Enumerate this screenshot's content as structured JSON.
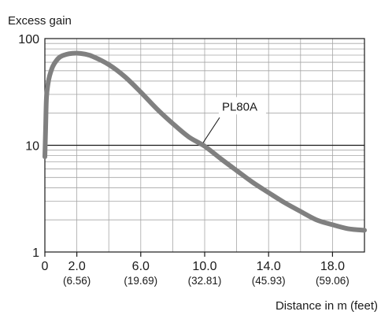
{
  "chart_data": {
    "type": "line",
    "ylabel": "Excess gain",
    "xlabel": "Distance in m (feet)",
    "yscale": "log",
    "ylim": [
      1,
      100
    ],
    "xlim": [
      0,
      20
    ],
    "grid": true,
    "y_ticks": [
      {
        "value": 1,
        "label": "1"
      },
      {
        "value": 10,
        "label": "10"
      },
      {
        "value": 100,
        "label": "100"
      }
    ],
    "x_ticks": [
      {
        "value": 0,
        "label": "0",
        "sub": ""
      },
      {
        "value": 2,
        "label": "2.0",
        "sub": "(6.56)"
      },
      {
        "value": 6,
        "label": "6.0",
        "sub": "(19.69)"
      },
      {
        "value": 10,
        "label": "10.0",
        "sub": "(32.81)"
      },
      {
        "value": 14,
        "label": "14.0",
        "sub": "(45.93)"
      },
      {
        "value": 18,
        "label": "18.0",
        "sub": "(59.06)"
      }
    ],
    "series": [
      {
        "name": "PL80A",
        "color": "#808080",
        "x": [
          0.0,
          0.05,
          0.1,
          0.2,
          0.3,
          0.5,
          0.75,
          1.0,
          1.5,
          2.0,
          2.5,
          3.0,
          4.0,
          5.0,
          6.0,
          7.0,
          8.0,
          9.0,
          10.0,
          11.0,
          12.0,
          13.0,
          14.0,
          15.0,
          16.0,
          17.0,
          18.0,
          19.0,
          20.0
        ],
        "y": [
          7.8,
          15.0,
          28.0,
          38.0,
          45.0,
          55.0,
          63.0,
          68.0,
          72.0,
          73.0,
          71.5,
          68.0,
          57.0,
          44.0,
          31.5,
          22.0,
          16.0,
          12.0,
          9.8,
          7.5,
          5.8,
          4.5,
          3.6,
          2.9,
          2.4,
          2.0,
          1.8,
          1.65,
          1.6
        ]
      }
    ],
    "annotation": {
      "text": "PL80A",
      "series": "PL80A",
      "x": 9.8
    }
  }
}
